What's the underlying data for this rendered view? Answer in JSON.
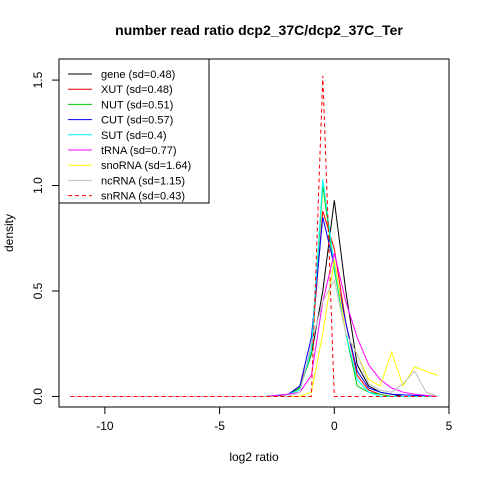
{
  "chart_data": {
    "type": "line",
    "title": "number read ratio dcp2_37C/dcp2_37C_Ter",
    "xlabel": "log2 ratio",
    "ylabel": "density",
    "xlim": [
      -12,
      5
    ],
    "ylim": [
      -0.05,
      1.6
    ],
    "xticks": [
      -10,
      -5,
      0,
      5
    ],
    "xtick_labels": [
      "-10",
      "-5",
      "0",
      "5"
    ],
    "yticks": [
      0.0,
      0.5,
      1.0,
      1.5
    ],
    "ytick_labels": [
      "0.0",
      "0.5",
      "1.0",
      "1.5"
    ],
    "grid": false,
    "legend_position": "top-left",
    "series": [
      {
        "name": "gene (sd=0.48)",
        "color": "#000000",
        "dash": "solid",
        "x": [
          -11.5,
          -3,
          -2.5,
          -2,
          -1.5,
          -1,
          -0.5,
          0,
          0.5,
          1,
          1.5,
          2,
          2.5,
          3,
          4.5
        ],
        "y": [
          0,
          0,
          0.002,
          0.01,
          0.04,
          0.2,
          0.5,
          0.93,
          0.5,
          0.15,
          0.05,
          0.02,
          0.01,
          0,
          0
        ]
      },
      {
        "name": "XUT (sd=0.48)",
        "color": "#ff0000",
        "dash": "solid",
        "x": [
          -11.5,
          -3,
          -2,
          -1.5,
          -1,
          -0.5,
          0,
          0.5,
          1,
          1.5,
          2,
          2.5,
          4.5
        ],
        "y": [
          0,
          0,
          0.01,
          0.05,
          0.22,
          0.88,
          0.7,
          0.35,
          0.1,
          0.03,
          0.01,
          0,
          0
        ]
      },
      {
        "name": "NUT (sd=0.51)",
        "color": "#00cd00",
        "dash": "solid",
        "x": [
          -11.5,
          -3,
          -2,
          -1.5,
          -1,
          -0.5,
          0,
          0.5,
          1,
          1.5,
          2,
          2.5,
          4.5
        ],
        "y": [
          0,
          0,
          0.01,
          0.04,
          0.2,
          1.0,
          0.6,
          0.3,
          0.05,
          0.02,
          0.01,
          0,
          0
        ]
      },
      {
        "name": "CUT (sd=0.57)",
        "color": "#0000ff",
        "dash": "solid",
        "x": [
          -11.5,
          -3,
          -2,
          -1.5,
          -1,
          -0.5,
          0,
          0.5,
          1,
          1.5,
          2,
          2.5,
          4.5
        ],
        "y": [
          0,
          0,
          0.01,
          0.05,
          0.28,
          0.85,
          0.62,
          0.35,
          0.12,
          0.04,
          0.02,
          0.01,
          0
        ]
      },
      {
        "name": "SUT (sd=0.4)",
        "color": "#00ffff",
        "dash": "solid",
        "x": [
          -11.5,
          -3,
          -2,
          -1.5,
          -1,
          -0.5,
          0,
          0.5,
          1,
          1.5,
          2,
          4.5
        ],
        "y": [
          0,
          0,
          0.01,
          0.03,
          0.22,
          1.03,
          0.62,
          0.3,
          0.08,
          0.02,
          0,
          0
        ]
      },
      {
        "name": "tRNA (sd=0.77)",
        "color": "#ff00ff",
        "dash": "solid",
        "x": [
          -11.5,
          -3,
          -2,
          -1.5,
          -1,
          -0.5,
          0,
          0.5,
          1,
          1.5,
          2,
          2.5,
          3,
          3.5,
          4.5
        ],
        "y": [
          0,
          0,
          0.01,
          0.02,
          0.1,
          0.45,
          0.68,
          0.45,
          0.28,
          0.15,
          0.08,
          0.04,
          0.02,
          0.01,
          0
        ]
      },
      {
        "name": "snoRNA (sd=1.64)",
        "color": "#ffff00",
        "dash": "solid",
        "x": [
          -11.5,
          -3,
          -1.5,
          -1,
          -0.5,
          0,
          0.5,
          1,
          1.5,
          2,
          2.5,
          3,
          3.5,
          4,
          4.5
        ],
        "y": [
          0,
          0,
          0,
          0.02,
          0.3,
          0.65,
          0.3,
          0.2,
          0.08,
          0.05,
          0.21,
          0.05,
          0.14,
          0.12,
          0.1
        ]
      },
      {
        "name": "ncRNA (sd=1.15)",
        "color": "#bebebe",
        "dash": "solid",
        "x": [
          -11.5,
          -3,
          -2,
          -1.5,
          -1,
          -0.5,
          0,
          0.5,
          1,
          1.5,
          2,
          2.5,
          3,
          3.5,
          4,
          4.5
        ],
        "y": [
          0,
          0,
          0,
          0.02,
          0.25,
          0.45,
          0.55,
          0.3,
          0.2,
          0.06,
          0.03,
          0.02,
          0.06,
          0.12,
          0.02,
          0
        ]
      },
      {
        "name": "snRNA (sd=0.43)",
        "color": "#ff0000",
        "dash": "dashed",
        "x": [
          -11.5,
          -3,
          -1,
          -0.5,
          0,
          0.5,
          4.5
        ],
        "y": [
          0,
          0,
          0,
          1.52,
          0,
          0,
          0
        ]
      }
    ]
  }
}
